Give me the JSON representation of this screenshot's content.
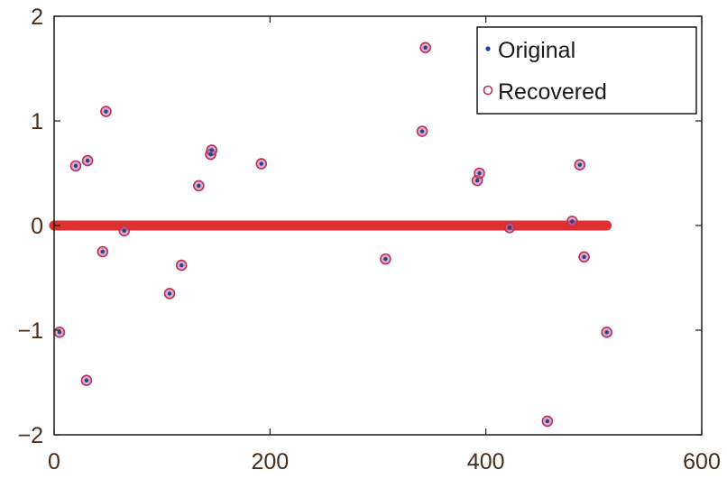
{
  "chart_data": {
    "type": "scatter",
    "xlim": [
      0,
      600
    ],
    "ylim": [
      -2,
      2
    ],
    "x_ticks": [
      0,
      200,
      400,
      600
    ],
    "y_ticks": [
      -2,
      -1,
      0,
      1,
      2
    ],
    "grid": false,
    "legend_position": "top-right",
    "series": [
      {
        "name": "Original",
        "marker": "dot",
        "color": "#2a3f8f",
        "points": [
          [
            5,
            -1.02
          ],
          [
            20,
            0.57
          ],
          [
            30,
            -1.48
          ],
          [
            31,
            0.62
          ],
          [
            45,
            -0.25
          ],
          [
            48,
            1.09
          ],
          [
            65,
            -0.05
          ],
          [
            107,
            -0.65
          ],
          [
            118,
            -0.38
          ],
          [
            134,
            0.38
          ],
          [
            145,
            0.68
          ],
          [
            146,
            0.72
          ],
          [
            192,
            0.59
          ],
          [
            307,
            -0.32
          ],
          [
            341,
            0.9
          ],
          [
            344,
            1.7
          ],
          [
            392,
            0.43
          ],
          [
            394,
            0.5
          ],
          [
            422,
            -0.02
          ],
          [
            457,
            -1.87
          ],
          [
            480,
            0.04
          ],
          [
            487,
            0.58
          ],
          [
            491,
            -0.3
          ],
          [
            512,
            -1.02
          ]
        ]
      },
      {
        "name": "Recovered",
        "marker": "circle",
        "color": "#c0305a",
        "points": [
          [
            5,
            -1.02
          ],
          [
            20,
            0.57
          ],
          [
            30,
            -1.48
          ],
          [
            31,
            0.62
          ],
          [
            45,
            -0.25
          ],
          [
            48,
            1.09
          ],
          [
            65,
            -0.05
          ],
          [
            107,
            -0.65
          ],
          [
            118,
            -0.38
          ],
          [
            134,
            0.38
          ],
          [
            145,
            0.68
          ],
          [
            146,
            0.72
          ],
          [
            192,
            0.59
          ],
          [
            307,
            -0.32
          ],
          [
            341,
            0.9
          ],
          [
            344,
            1.7
          ],
          [
            392,
            0.43
          ],
          [
            394,
            0.5
          ],
          [
            422,
            -0.02
          ],
          [
            457,
            -1.87
          ],
          [
            480,
            0.04
          ],
          [
            487,
            0.58
          ],
          [
            491,
            -0.3
          ],
          [
            512,
            -1.02
          ]
        ]
      }
    ],
    "zero_band": {
      "x_start": 0,
      "x_end": 512,
      "y": 0,
      "color": "#e03030"
    }
  }
}
